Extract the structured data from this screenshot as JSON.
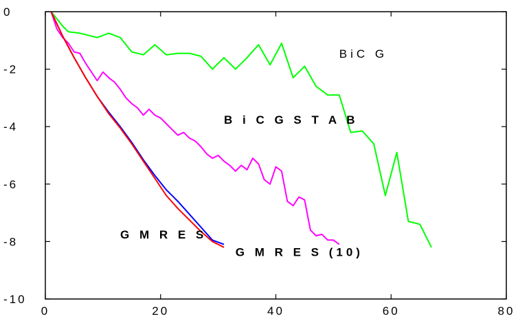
{
  "chart_data": {
    "type": "line",
    "title": "",
    "xlabel": "",
    "ylabel": "",
    "xlim": [
      0,
      80
    ],
    "ylim": [
      -10,
      0
    ],
    "x_ticks": [
      0,
      20,
      40,
      60,
      80
    ],
    "y_ticks": [
      0,
      -2,
      -4,
      -6,
      -8,
      -10
    ],
    "x_tick_labels": [
      "0",
      "20",
      "40",
      "60",
      "80"
    ],
    "y_tick_labels": [
      "0",
      "-2",
      "-4",
      "-6",
      "-8",
      "-10"
    ],
    "grid": false,
    "series": [
      {
        "name": "BiC G",
        "color": "#00ff00",
        "label_style": "normal",
        "x": [
          1,
          3,
          4,
          6,
          7,
          9,
          11,
          13,
          15,
          17,
          19,
          21,
          23,
          25,
          27,
          29,
          31,
          33,
          35,
          37,
          39,
          41,
          43,
          45,
          47,
          49,
          51,
          53,
          55,
          57,
          59,
          61,
          63,
          65,
          67
        ],
        "y": [
          0,
          -0.5,
          -0.7,
          -0.75,
          -0.8,
          -0.9,
          -0.75,
          -0.9,
          -1.4,
          -1.5,
          -1.15,
          -1.5,
          -1.45,
          -1.45,
          -1.55,
          -2.0,
          -1.6,
          -2.0,
          -1.6,
          -1.15,
          -1.85,
          -1.1,
          -2.3,
          -1.9,
          -2.6,
          -2.9,
          -2.9,
          -4.2,
          -4.15,
          -4.6,
          -6.4,
          -4.9,
          -7.3,
          -7.4,
          -8.2
        ]
      },
      {
        "name": "BiCGSTAB",
        "color": "#ff00ff",
        "label_style": "bold",
        "x": [
          1,
          2,
          3,
          4,
          5,
          6,
          7,
          8,
          9,
          10,
          11,
          12,
          13,
          14,
          15,
          16,
          17,
          18,
          19,
          20,
          21,
          22,
          23,
          24,
          25,
          26,
          27,
          28,
          29,
          30,
          31,
          32,
          33,
          34,
          35,
          36,
          37,
          38,
          39,
          40,
          41,
          42,
          43,
          44,
          45,
          46,
          47,
          48,
          49,
          50,
          51
        ],
        "y": [
          0,
          -0.6,
          -0.9,
          -1.1,
          -1.4,
          -1.45,
          -1.8,
          -2.1,
          -2.4,
          -2.1,
          -2.3,
          -2.45,
          -2.7,
          -3.0,
          -3.2,
          -3.35,
          -3.6,
          -3.4,
          -3.6,
          -3.7,
          -3.9,
          -4.1,
          -4.3,
          -4.2,
          -4.4,
          -4.5,
          -4.7,
          -4.95,
          -5.1,
          -5.0,
          -5.2,
          -5.35,
          -5.55,
          -5.35,
          -5.5,
          -5.1,
          -5.3,
          -5.85,
          -6.0,
          -5.4,
          -5.55,
          -6.6,
          -6.75,
          -6.45,
          -6.55,
          -7.6,
          -7.8,
          -7.75,
          -7.95,
          -7.95,
          -8.1
        ]
      },
      {
        "name": "GMRES",
        "color": "#0000ff",
        "label_style": "bold",
        "x": [
          1,
          3,
          5,
          7,
          9,
          11,
          13,
          15,
          17,
          19,
          21,
          23,
          25,
          27,
          29,
          31
        ],
        "y": [
          0,
          -0.85,
          -1.6,
          -2.3,
          -2.95,
          -3.5,
          -4.0,
          -4.55,
          -5.15,
          -5.7,
          -6.2,
          -6.6,
          -7.05,
          -7.5,
          -7.95,
          -8.1
        ]
      },
      {
        "name": "GMRES(10)",
        "color": "#ff0000",
        "label_style": "bold",
        "x": [
          1,
          3,
          5,
          7,
          9,
          11,
          13,
          15,
          17,
          19,
          21,
          23,
          25,
          27,
          29,
          31
        ],
        "y": [
          0,
          -0.85,
          -1.6,
          -2.3,
          -2.95,
          -3.55,
          -4.05,
          -4.6,
          -5.2,
          -5.8,
          -6.4,
          -6.85,
          -7.25,
          -7.65,
          -8.0,
          -8.2
        ]
      }
    ],
    "annotations": [
      {
        "text": "BiC G",
        "series": "BiC G",
        "x": 51,
        "y": -1.6,
        "style": "normal"
      },
      {
        "text": "B i C G S T A B",
        "series": "BiCGSTAB",
        "x": 31,
        "y": -3.9,
        "style": "bold"
      },
      {
        "text": "G M R E S",
        "series": "GMRES",
        "x": 13,
        "y": -7.9,
        "style": "bold"
      },
      {
        "text": "G M R E S (10)",
        "series": "GMRES(10)",
        "x": 33,
        "y": -8.5,
        "style": "bold"
      }
    ]
  }
}
